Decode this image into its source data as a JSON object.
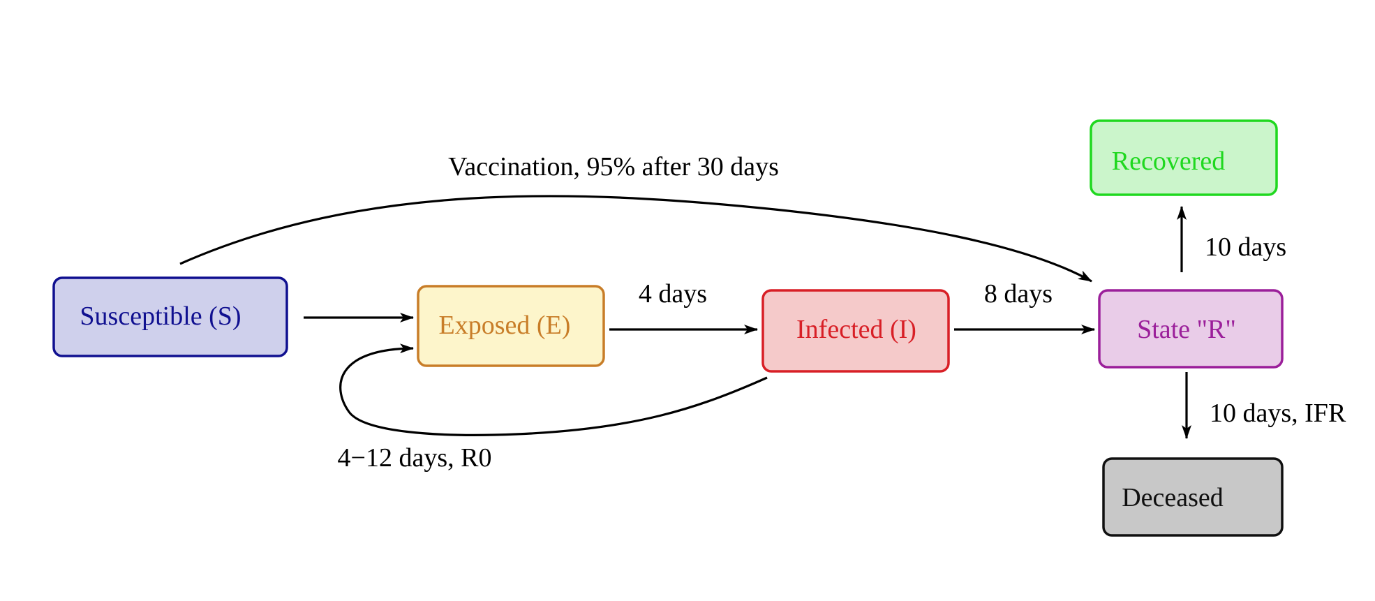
{
  "nodes": {
    "susceptible": {
      "label": "Susceptible (S)",
      "fill": "#cfd0ec",
      "stroke": "#101090",
      "text": "#101090"
    },
    "exposed": {
      "label": "Exposed (E)",
      "fill": "#fdf5cb",
      "stroke": "#c87d28",
      "text": "#c87d28"
    },
    "infected": {
      "label": "Infected (I)",
      "fill": "#f5caca",
      "stroke": "#d81f26",
      "text": "#d81f26"
    },
    "state_r": {
      "label": "State \"R\"",
      "fill": "#e9cce8",
      "stroke": "#9b1f9a",
      "text": "#9b1f9a"
    },
    "recovered": {
      "label": "Recovered",
      "fill": "#cbf5cb",
      "stroke": "#1fd81f",
      "text": "#1fd81f"
    },
    "deceased": {
      "label": "Deceased",
      "fill": "#c8c8c8",
      "stroke": "#101010",
      "text": "#101010"
    }
  },
  "edges": {
    "vaccination": "Vaccination, 95% after 30 days",
    "exposed_to_infected": "4 days",
    "infected_to_r": "8 days",
    "infection_loop": "4−12 days, R0",
    "r_to_recovered": "10 days",
    "r_to_deceased": "10 days, IFR"
  }
}
